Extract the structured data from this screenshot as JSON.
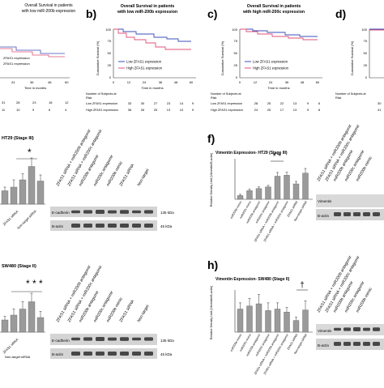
{
  "panels": {
    "a": {
      "title_1": "Overall Survival in patients",
      "title_2": "with low miR-200b expression",
      "legend": [
        "ZFAS1 expression",
        "ZFAS1 expression"
      ],
      "x_ticks": [
        "24",
        "36",
        "48",
        "60"
      ],
      "x_label": "Time in months",
      "risk_rows": [
        [
          "31",
          "28",
          "23",
          "18",
          "12"
        ],
        [
          "11",
          "10",
          "9",
          "6",
          "4"
        ]
      ]
    },
    "b": {
      "letter": "b)",
      "title_1": "Overall Survival in patients",
      "title_2": "with low miR-200b expression",
      "y_label": "Cumulative Survival (%)",
      "y_ticks": [
        "0",
        "25",
        "50",
        "75",
        "100"
      ],
      "x_ticks": [
        "0",
        "12",
        "24",
        "36",
        "48",
        "60"
      ],
      "x_label": "Time in months",
      "legend": [
        "Low ZFAS1 expression",
        "High ZFAS1 expression"
      ],
      "risk_header": [
        "Number of Subjects at",
        "Risk"
      ],
      "risk_labels": [
        "Low ZFAS1 expression",
        "High ZFAS1 expression"
      ],
      "risk_rows": [
        [
          "33",
          "30",
          "27",
          "23",
          "14",
          "9"
        ],
        [
          "36",
          "26",
          "25",
          "13",
          "10",
          "9"
        ]
      ]
    },
    "c": {
      "letter": "c)",
      "title_1": "Overall Survival in patients",
      "title_2": "with high miR-200c expression",
      "y_label": "Cumulative Survival (%)",
      "y_ticks": [
        "0",
        "25",
        "50",
        "75",
        "100"
      ],
      "x_ticks": [
        "0",
        "12",
        "24",
        "36",
        "48",
        "60"
      ],
      "x_label": "Time in months",
      "legend": [
        "Low ZFAS1 expression",
        "High ZFAS1 expression"
      ],
      "risk_header": [
        "Number of Subjects at",
        "Risk"
      ],
      "risk_labels": [
        "Low ZFAS1 expression",
        "High ZFAS1 expression"
      ],
      "risk_rows": [
        [
          "28",
          "25",
          "22",
          "13",
          "9",
          "6"
        ],
        [
          "24",
          "25",
          "17",
          "13",
          "9",
          "8"
        ]
      ]
    },
    "d": {
      "letter": "d)",
      "y_label": "Cumulative Survival (%)",
      "y_ticks": [
        "0",
        "25",
        "50",
        "75",
        "100"
      ],
      "risk_header": [
        "Number of Subjects at",
        "Risk"
      ],
      "risk_rows": [
        [
          "30"
        ],
        [
          "41"
        ]
      ]
    },
    "e": {
      "title": "HT29 (Stage III)",
      "sig": "*",
      "bar_labels": [
        "ZFAS1 siRNA",
        "Non-target siRNA"
      ],
      "lanes": [
        "ZFAS1 siRNA + miR200b antagomir",
        "ZFAS1 siRNA + miR200c antagomir",
        "miR200b antagomir",
        "miR200c antagomir",
        "miR200b mimic",
        "ZFAS1 siRNA",
        "Non-target"
      ],
      "blot_labels": [
        "E-cadherin",
        "B-actin"
      ],
      "kda": [
        "135 kDa",
        "45 kDa"
      ]
    },
    "f": {
      "letter": "f)",
      "title": "Vimentin Expression- HT29 (Stage III)",
      "sig": "* *",
      "y_label": "Relative Density Unit (Vimentin/B-actin)",
      "x_labels": [
        "miR200b mimic",
        "miR200c mimic",
        "miR200b antagomir",
        "miR200c antagomir",
        "ZFAS1 siRNA + miR200b antagomir",
        "ZFAS1 siRNA + miR200c antagomir",
        "ZFAS1 siRNA",
        "Non-target siRNA"
      ],
      "lanes": [
        "ZFAS1 siRNA + miR200b antagomir",
        "ZFAS1 siRNA + miR200c antagomir",
        "miR200b antagomir",
        "miR200c antagomir",
        "miR200b mimic"
      ],
      "blot_labels": [
        "Vimentin",
        "B-actin"
      ]
    },
    "g": {
      "title": "SW480 (Stage II)",
      "sig": "* * *",
      "bar_labels": [
        "ZFAS1 siRNA",
        "Non-target siRNA"
      ],
      "lanes": [
        "ZFAS1 siRNA + miR200b antagomir",
        "ZFAS1 siRNA + miR200c antagomir",
        "miR200b antagomir",
        "miR200c antagomir",
        "miR200b mimic",
        "ZFAS1 siRNA",
        "Non-target"
      ],
      "blot_labels": [
        "E-cadherin",
        "B-actin"
      ],
      "kda": [
        "135 kDa",
        "45 kDa"
      ]
    },
    "h": {
      "letter": "h)",
      "title": "Vimentin Expression- SW480 (Stage II)",
      "sig": "†",
      "y_label": "Relative Density Unit (Vimentin/B-actin)",
      "x_labels": [
        "miR200b mimic",
        "miR200c mimic",
        "miR200b antagomir",
        "miR200c antagomir",
        "ZFAS1 siRNA + miR200b antagomir",
        "ZFAS1 siRNA + miR200c antagomir",
        "ZFAS1 siRNA",
        "Non-target siRNA"
      ],
      "lanes": [
        "ZFAS1 siRNA + miR200b antagomir",
        "ZFAS1 siRNA + miR200c antagomir",
        "miR200b antagomir",
        "miR200c antagomir",
        "miR200b mimic"
      ],
      "blot_labels": [
        "Vimentin",
        "B-actin"
      ]
    }
  },
  "chart_data": [
    {
      "panel": "e",
      "type": "bar",
      "values": [
        0.55,
        0.7,
        1.0,
        1.55,
        0.95
      ],
      "errors": [
        0.15,
        0.3,
        0.25,
        0.35,
        0.25
      ]
    },
    {
      "panel": "f",
      "type": "bar",
      "categories": [
        "miR200b mimic",
        "miR200c mimic",
        "miR200b antagomir",
        "miR200c antagomir",
        "ZFAS1 siRNA + miR200b antagomir",
        "ZFAS1 siRNA + miR200c antagomir",
        "ZFAS1 siRNA",
        "Non-target siRNA"
      ],
      "values": [
        0.12,
        0.28,
        0.35,
        0.4,
        0.75,
        0.78,
        0.5,
        0.85
      ],
      "errors": [
        0.04,
        0.05,
        0.05,
        0.05,
        0.12,
        0.1,
        0.08,
        0.15
      ],
      "ylim": [
        0,
        1.2
      ]
    },
    {
      "panel": "g",
      "type": "bar",
      "values": [
        0.5,
        0.7,
        0.95,
        1.25,
        0.6
      ],
      "errors": [
        0.15,
        0.25,
        0.3,
        0.35,
        0.25
      ]
    },
    {
      "panel": "h",
      "type": "bar",
      "categories": [
        "miR200b mimic",
        "miR200c mimic",
        "miR200b antagomir",
        "miR200c antagomir",
        "ZFAS1 siRNA + miR200b antagomir",
        "ZFAS1 siRNA + miR200c antagomir",
        "ZFAS1 siRNA",
        "Non-target siRNA"
      ],
      "values": [
        0.75,
        0.85,
        0.92,
        0.7,
        0.75,
        0.65,
        0.38,
        0.72
      ],
      "errors": [
        0.2,
        0.25,
        0.3,
        0.25,
        0.2,
        0.15,
        0.1,
        0.3
      ],
      "ylim": [
        0,
        1.5
      ]
    }
  ],
  "colors": {
    "low": "#3a4fb8",
    "high": "#e0507a",
    "bar": "#9a9a9a",
    "blot_bg": "#cfcfcf",
    "band": "#2e2e2e"
  }
}
